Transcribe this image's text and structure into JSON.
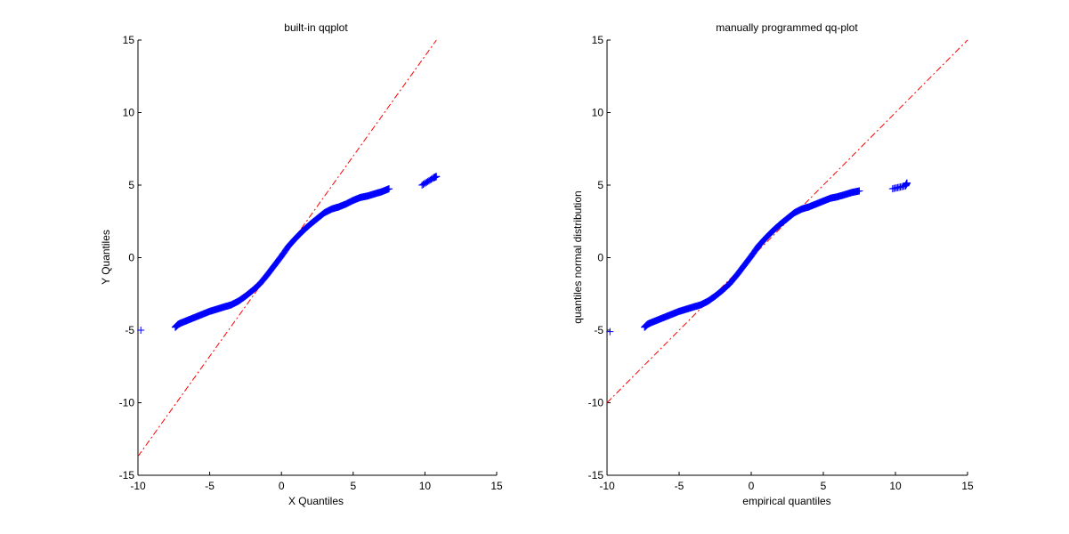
{
  "chart_data": [
    {
      "type": "scatter",
      "title": "built-in qqplot",
      "xlabel": "X Quantiles",
      "ylabel": "Y Quantiles",
      "xlim": [
        -10,
        15
      ],
      "ylim": [
        -15,
        15
      ],
      "xticks": [
        -10,
        -5,
        0,
        5,
        10,
        15
      ],
      "yticks": [
        -15,
        -10,
        -5,
        0,
        5,
        10,
        15
      ],
      "grid": false,
      "marker_color": "#0000ff",
      "reference_line": {
        "style": "dash-dot",
        "color": "#ff0000",
        "x": [
          -10,
          10.8
        ],
        "y": [
          -13.7,
          15
        ]
      },
      "series": [
        {
          "marker": "+",
          "points": [
            [
              -9.8,
              -5.0
            ],
            [
              -7.4,
              -4.8
            ],
            [
              -7.2,
              -4.6
            ],
            [
              -7.0,
              -4.5
            ],
            [
              -6.5,
              -4.3
            ],
            [
              -6.0,
              -4.1
            ],
            [
              -5.5,
              -3.9
            ],
            [
              -5.0,
              -3.7
            ],
            [
              -4.5,
              -3.55
            ],
            [
              -4.0,
              -3.4
            ],
            [
              -3.5,
              -3.25
            ],
            [
              -3.0,
              -3.0
            ],
            [
              -2.5,
              -2.65
            ],
            [
              -2.0,
              -2.25
            ],
            [
              -1.5,
              -1.8
            ],
            [
              -1.0,
              -1.2
            ],
            [
              -0.5,
              -0.55
            ],
            [
              0.0,
              0.1
            ],
            [
              0.5,
              0.8
            ],
            [
              1.0,
              1.35
            ],
            [
              1.5,
              1.85
            ],
            [
              2.0,
              2.3
            ],
            [
              2.5,
              2.7
            ],
            [
              3.0,
              3.1
            ],
            [
              3.5,
              3.35
            ],
            [
              4.0,
              3.5
            ],
            [
              4.5,
              3.7
            ],
            [
              5.0,
              3.95
            ],
            [
              5.5,
              4.15
            ],
            [
              6.0,
              4.25
            ],
            [
              6.5,
              4.4
            ],
            [
              7.0,
              4.55
            ],
            [
              7.5,
              4.75
            ],
            [
              9.8,
              5.0
            ],
            [
              10.6,
              5.5
            ],
            [
              10.8,
              5.6
            ]
          ]
        }
      ]
    },
    {
      "type": "scatter",
      "title": "manually programmed qq-plot",
      "xlabel": "empirical quantiles",
      "ylabel": "quantiles normal distribution",
      "xlim": [
        -10,
        15
      ],
      "ylim": [
        -15,
        15
      ],
      "xticks": [
        -10,
        -5,
        0,
        5,
        10,
        15
      ],
      "yticks": [
        -15,
        -10,
        -5,
        0,
        5,
        10,
        15
      ],
      "grid": false,
      "marker_color": "#0000ff",
      "reference_line": {
        "style": "dash-dot",
        "color": "#ff0000",
        "x": [
          -10,
          15
        ],
        "y": [
          -10,
          15
        ]
      },
      "series": [
        {
          "marker": "+",
          "points": [
            [
              -9.8,
              -5.1
            ],
            [
              -7.4,
              -4.8
            ],
            [
              -7.2,
              -4.6
            ],
            [
              -7.0,
              -4.5
            ],
            [
              -6.5,
              -4.3
            ],
            [
              -6.0,
              -4.1
            ],
            [
              -5.5,
              -3.9
            ],
            [
              -5.0,
              -3.7
            ],
            [
              -4.5,
              -3.55
            ],
            [
              -4.0,
              -3.4
            ],
            [
              -3.5,
              -3.25
            ],
            [
              -3.0,
              -3.0
            ],
            [
              -2.5,
              -2.65
            ],
            [
              -2.0,
              -2.25
            ],
            [
              -1.5,
              -1.8
            ],
            [
              -1.0,
              -1.2
            ],
            [
              -0.5,
              -0.55
            ],
            [
              0.0,
              0.1
            ],
            [
              0.5,
              0.8
            ],
            [
              1.0,
              1.35
            ],
            [
              1.5,
              1.85
            ],
            [
              2.0,
              2.3
            ],
            [
              2.5,
              2.7
            ],
            [
              3.0,
              3.1
            ],
            [
              3.5,
              3.35
            ],
            [
              4.0,
              3.5
            ],
            [
              4.5,
              3.7
            ],
            [
              5.0,
              3.9
            ],
            [
              5.5,
              4.1
            ],
            [
              6.0,
              4.2
            ],
            [
              6.5,
              4.35
            ],
            [
              7.0,
              4.5
            ],
            [
              7.5,
              4.6
            ],
            [
              9.8,
              4.75
            ],
            [
              10.7,
              4.95
            ],
            [
              10.8,
              5.15
            ]
          ]
        }
      ]
    }
  ]
}
